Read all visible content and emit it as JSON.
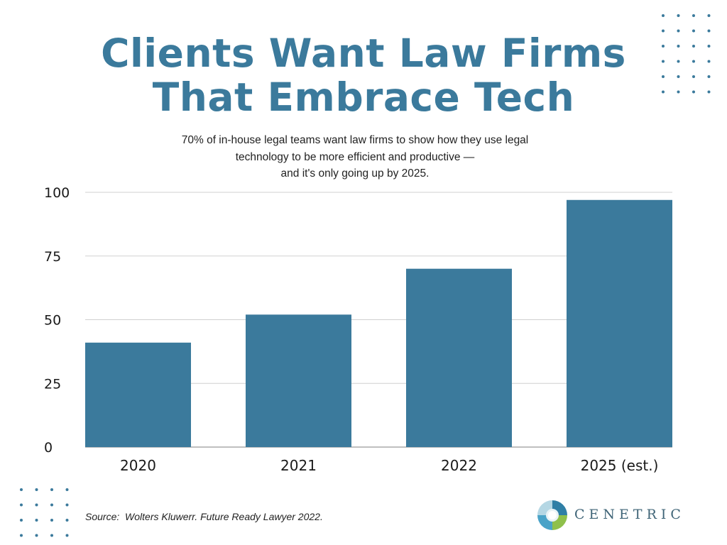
{
  "title": {
    "line1": "Clients Want Law Firms",
    "line2": "That Embrace Tech"
  },
  "subtitle": {
    "line1": "70% of in-house legal teams want law firms to show how they use legal",
    "line2": "technology to be more efficient and productive —",
    "line3": "and it's only going up by 2025."
  },
  "source": "Source:  Wolters Kluwerr. Future Ready Lawyer 2022.",
  "logo": {
    "text": "CENETRIC",
    "icon": "cenetric-logo-icon"
  },
  "colors": {
    "bar": "#3b7a9c",
    "title": "#3b7a9c",
    "grid": "#d0d0d0",
    "dots": "#3b7a9c"
  },
  "chart_data": {
    "type": "bar",
    "categories": [
      "2020",
      "2021",
      "2022",
      "2025 (est.)"
    ],
    "values": [
      41,
      52,
      70,
      97
    ],
    "ylim": [
      0,
      100
    ],
    "yticks": [
      0,
      25,
      50,
      75,
      100
    ],
    "ytick_labels": [
      "0",
      "25",
      "50",
      "75",
      "100"
    ],
    "grid": true,
    "legend": "none"
  }
}
